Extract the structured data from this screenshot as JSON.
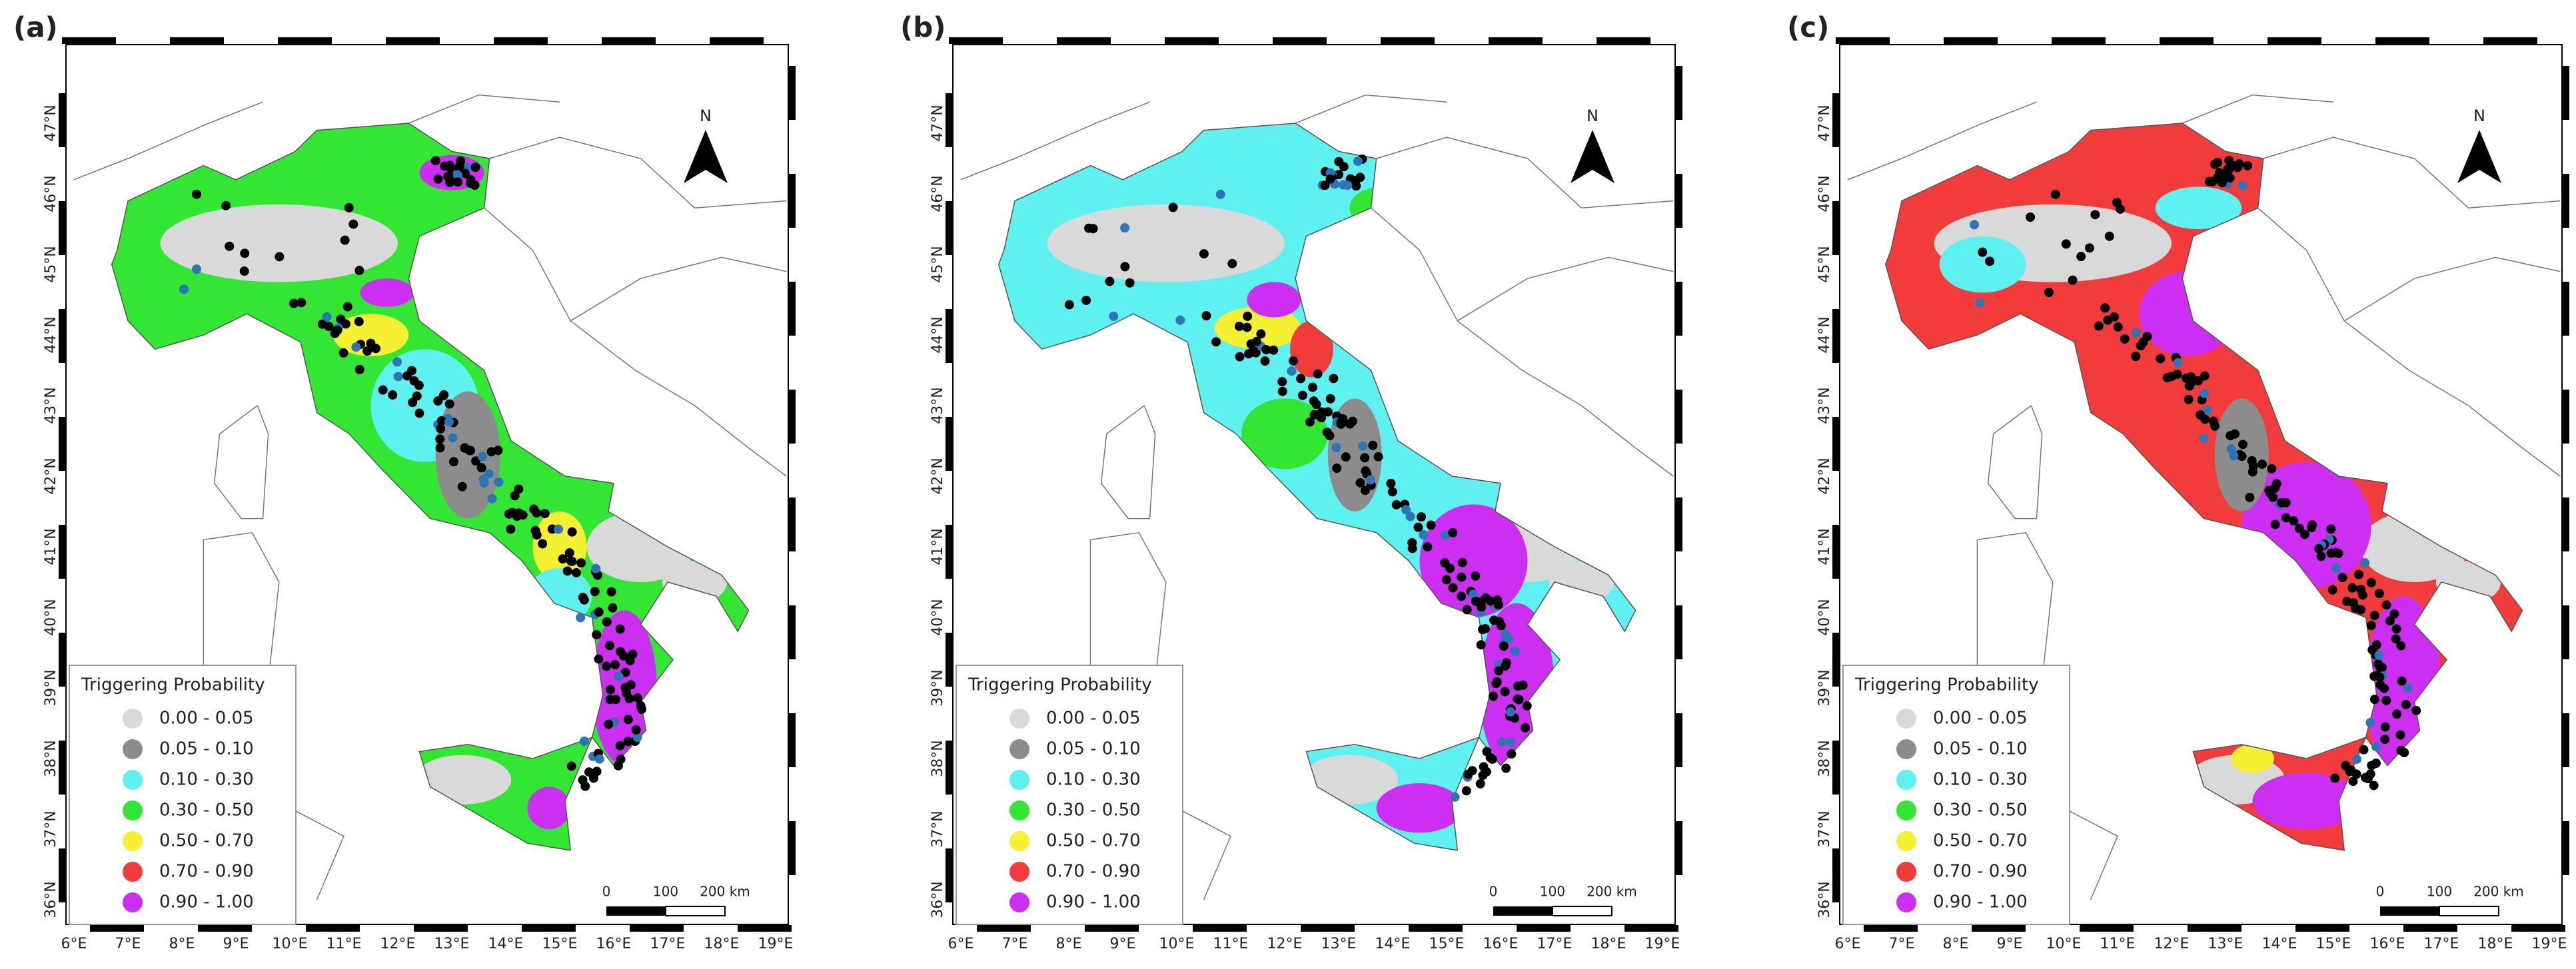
{
  "panels": [
    {
      "label": "(a)"
    },
    {
      "label": "(b)"
    },
    {
      "label": "(c)"
    }
  ],
  "lon_ticks": [
    "6°E",
    "7°E",
    "8°E",
    "9°E",
    "10°E",
    "11°E",
    "12°E",
    "13°E",
    "14°E",
    "15°E",
    "16°E",
    "17°E",
    "18°E",
    "19°E"
  ],
  "lat_ticks": [
    "36°N",
    "37°N",
    "38°N",
    "39°N",
    "40°N",
    "41°N",
    "42°N",
    "43°N",
    "44°N",
    "45°N",
    "46°N",
    "47°N"
  ],
  "legend": {
    "title": "Triggering Probability",
    "items": [
      {
        "label": "0.00 - 0.05",
        "color": "#d9d9d9"
      },
      {
        "label": "0.05 - 0.10",
        "color": "#8c8c8c"
      },
      {
        "label": "0.10 - 0.30",
        "color": "#5ff0f0"
      },
      {
        "label": "0.30 - 0.50",
        "color": "#33e633"
      },
      {
        "label": "0.50 - 0.70",
        "color": "#f5f032"
      },
      {
        "label": "0.70 - 0.90",
        "color": "#f23c3c"
      },
      {
        "label": "0.90 - 1.00",
        "color": "#cc2ef2"
      }
    ]
  },
  "scale_bar": {
    "labels": [
      "0",
      "100",
      "200 km"
    ]
  },
  "north": "N"
}
